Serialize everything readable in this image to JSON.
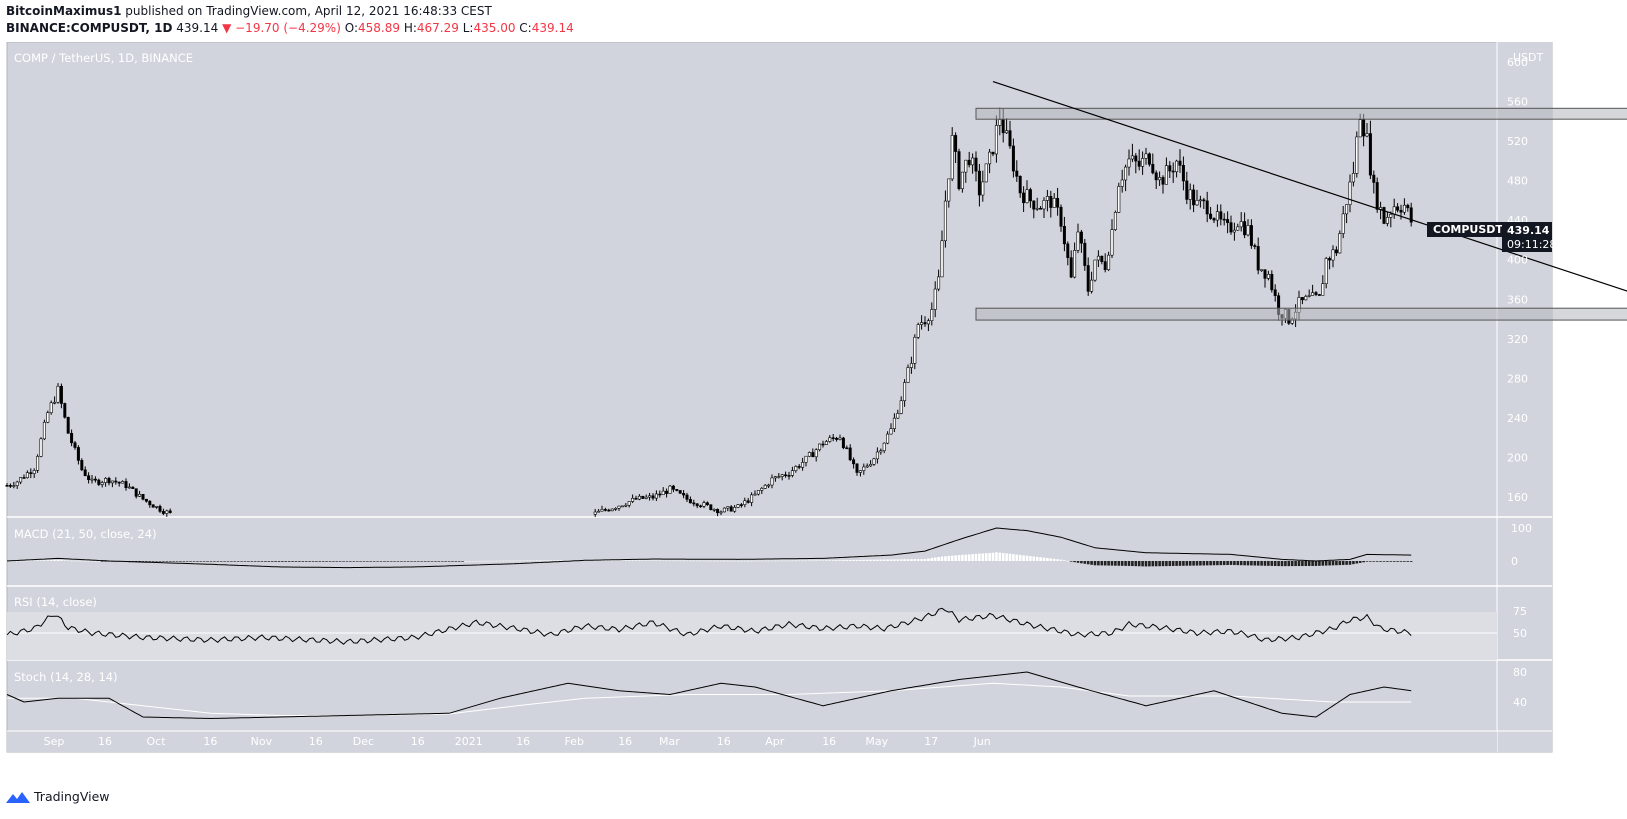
{
  "header": {
    "author": "BitcoinMaximus1",
    "published_text": "published on TradingView.com, April 12, 2021 16:48:33 CEST",
    "symbol": "BINANCE:COMPUSDT, 1D",
    "last": "439.14",
    "arrow": "▼",
    "change": "−19.70 (−4.29%)",
    "o_label": "O:",
    "o": "458.89",
    "h_label": "H:",
    "h": "467.29",
    "l_label": "L:",
    "l": "435.00",
    "c_label": "C:",
    "c": "439.14"
  },
  "chart_data": [
    {
      "type": "candlestick",
      "title": "COMP / TetherUS, 1D, BINANCE",
      "currency": "USDT",
      "ylim": [
        140,
        620
      ],
      "y_ticks": [
        160,
        200,
        240,
        280,
        320,
        360,
        400,
        440,
        480,
        520,
        560,
        600
      ],
      "x_ticks": [
        "Sep",
        "16",
        "Oct",
        "16",
        "Nov",
        "16",
        "Dec",
        "16",
        "2021",
        "16",
        "Feb",
        "16",
        "Mar",
        "16",
        "Apr",
        "16",
        "May",
        "17",
        "Jun"
      ],
      "price_label": {
        "symbol": "COMPUSDT",
        "price": "439.14",
        "countdown": "09:11:28"
      },
      "close_anchors": [
        [
          0,
          172
        ],
        [
          3,
          176
        ],
        [
          8,
          190
        ],
        [
          12,
          245
        ],
        [
          15,
          268
        ],
        [
          18,
          225
        ],
        [
          22,
          188
        ],
        [
          25,
          175
        ],
        [
          30,
          178
        ],
        [
          35,
          172
        ],
        [
          40,
          158
        ],
        [
          45,
          148
        ],
        [
          50,
          140
        ],
        [
          100,
          135
        ],
        [
          150,
          136
        ],
        [
          170,
          140
        ],
        [
          180,
          152
        ],
        [
          185,
          158
        ],
        [
          190,
          160
        ],
        [
          195,
          168
        ],
        [
          200,
          158
        ],
        [
          205,
          152
        ],
        [
          210,
          146
        ],
        [
          215,
          150
        ],
        [
          220,
          162
        ],
        [
          225,
          178
        ],
        [
          230,
          185
        ],
        [
          235,
          198
        ],
        [
          240,
          215
        ],
        [
          245,
          222
        ],
        [
          250,
          182
        ],
        [
          255,
          200
        ],
        [
          260,
          228
        ],
        [
          263,
          260
        ],
        [
          266,
          300
        ],
        [
          268,
          335
        ],
        [
          270,
          340
        ],
        [
          272,
          350
        ],
        [
          274,
          378
        ],
        [
          276,
          460
        ],
        [
          278,
          520
        ],
        [
          280,
          480
        ],
        [
          283,
          505
        ],
        [
          286,
          470
        ],
        [
          289,
          500
        ],
        [
          292,
          545
        ],
        [
          295,
          510
        ],
        [
          298,
          470
        ],
        [
          301,
          460
        ],
        [
          304,
          455
        ],
        [
          307,
          460
        ],
        [
          310,
          440
        ],
        [
          313,
          380
        ],
        [
          315,
          430
        ],
        [
          318,
          370
        ],
        [
          320,
          400
        ],
        [
          323,
          395
        ],
        [
          325,
          430
        ],
        [
          327,
          480
        ],
        [
          330,
          500
        ],
        [
          333,
          495
        ],
        [
          336,
          505
        ],
        [
          339,
          480
        ],
        [
          342,
          490
        ],
        [
          344,
          500
        ],
        [
          347,
          470
        ],
        [
          350,
          455
        ],
        [
          353,
          455
        ],
        [
          356,
          440
        ],
        [
          359,
          430
        ],
        [
          362,
          440
        ],
        [
          365,
          430
        ],
        [
          368,
          395
        ],
        [
          371,
          385
        ],
        [
          374,
          350
        ],
        [
          377,
          340
        ],
        [
          380,
          355
        ],
        [
          383,
          360
        ],
        [
          386,
          360
        ],
        [
          388,
          400
        ],
        [
          391,
          410
        ],
        [
          394,
          460
        ],
        [
          396,
          490
        ],
        [
          398,
          550
        ],
        [
          400,
          520
        ],
        [
          402,
          470
        ],
        [
          405,
          440
        ],
        [
          408,
          455
        ],
        [
          411,
          455
        ],
        [
          413,
          439
        ]
      ],
      "trendline": {
        "from": [
          290,
          580
        ],
        "to": [
          505,
          336
        ]
      },
      "resistance_zone": {
        "from": 285,
        "to": 515,
        "low": 542,
        "high": 553
      },
      "support_zone": {
        "from": 285,
        "to": 517,
        "low": 339,
        "high": 351
      }
    },
    {
      "type": "line",
      "title": "MACD (21, 50, close, 24)",
      "y_ticks": [
        100,
        0
      ],
      "macd_anchors": [
        [
          0,
          0
        ],
        [
          15,
          8
        ],
        [
          30,
          0
        ],
        [
          60,
          -10
        ],
        [
          80,
          -18
        ],
        [
          100,
          -20
        ],
        [
          120,
          -18
        ],
        [
          150,
          -8
        ],
        [
          170,
          2
        ],
        [
          190,
          6
        ],
        [
          215,
          5
        ],
        [
          240,
          8
        ],
        [
          260,
          18
        ],
        [
          270,
          30
        ],
        [
          280,
          65
        ],
        [
          291,
          100
        ],
        [
          300,
          92
        ],
        [
          310,
          72
        ],
        [
          320,
          40
        ],
        [
          335,
          25
        ],
        [
          360,
          20
        ],
        [
          375,
          5
        ],
        [
          385,
          0
        ],
        [
          395,
          5
        ],
        [
          400,
          20
        ],
        [
          413,
          18
        ]
      ],
      "signal_anchors": [
        [
          0,
          0
        ],
        [
          20,
          4
        ],
        [
          40,
          -3
        ],
        [
          60,
          -8
        ],
        [
          80,
          -14
        ],
        [
          100,
          -17
        ],
        [
          120,
          -16
        ],
        [
          150,
          -10
        ],
        [
          170,
          -2
        ],
        [
          190,
          3
        ],
        [
          215,
          4
        ],
        [
          240,
          5
        ],
        [
          260,
          10
        ],
        [
          275,
          25
        ],
        [
          290,
          55
        ],
        [
          300,
          65
        ],
        [
          315,
          65
        ],
        [
          330,
          55
        ],
        [
          360,
          40
        ],
        [
          385,
          25
        ],
        [
          413,
          22
        ]
      ]
    },
    {
      "type": "line",
      "title": "RSI (14, close)",
      "y_ticks": [
        75,
        50
      ],
      "bands": [
        30,
        70
      ],
      "rsi_anchors": [
        [
          0,
          48
        ],
        [
          8,
          55
        ],
        [
          14,
          72
        ],
        [
          18,
          56
        ],
        [
          25,
          50
        ],
        [
          40,
          45
        ],
        [
          60,
          42
        ],
        [
          75,
          45
        ],
        [
          100,
          40
        ],
        [
          120,
          45
        ],
        [
          138,
          62
        ],
        [
          150,
          55
        ],
        [
          160,
          48
        ],
        [
          170,
          58
        ],
        [
          180,
          54
        ],
        [
          190,
          62
        ],
        [
          200,
          48
        ],
        [
          210,
          58
        ],
        [
          220,
          52
        ],
        [
          230,
          60
        ],
        [
          240,
          55
        ],
        [
          250,
          58
        ],
        [
          258,
          55
        ],
        [
          265,
          62
        ],
        [
          270,
          68
        ],
        [
          276,
          78
        ],
        [
          280,
          65
        ],
        [
          290,
          70
        ],
        [
          300,
          60
        ],
        [
          310,
          52
        ],
        [
          315,
          48
        ],
        [
          325,
          50
        ],
        [
          330,
          60
        ],
        [
          340,
          56
        ],
        [
          350,
          50
        ],
        [
          360,
          52
        ],
        [
          365,
          48
        ],
        [
          370,
          42
        ],
        [
          380,
          45
        ],
        [
          390,
          55
        ],
        [
          395,
          65
        ],
        [
          400,
          68
        ],
        [
          404,
          55
        ],
        [
          413,
          50
        ]
      ]
    },
    {
      "type": "line",
      "title": "Stoch (14, 28, 14)",
      "y_ticks": [
        80,
        40
      ],
      "k_anchors": [
        [
          0,
          50
        ],
        [
          5,
          40
        ],
        [
          15,
          45
        ],
        [
          30,
          45
        ],
        [
          40,
          20
        ],
        [
          60,
          18
        ],
        [
          80,
          20
        ],
        [
          100,
          22
        ],
        [
          130,
          25
        ],
        [
          145,
          45
        ],
        [
          165,
          65
        ],
        [
          180,
          55
        ],
        [
          195,
          50
        ],
        [
          210,
          65
        ],
        [
          220,
          60
        ],
        [
          240,
          35
        ],
        [
          260,
          55
        ],
        [
          280,
          70
        ],
        [
          300,
          80
        ],
        [
          315,
          60
        ],
        [
          335,
          35
        ],
        [
          355,
          55
        ],
        [
          375,
          25
        ],
        [
          385,
          20
        ],
        [
          395,
          50
        ],
        [
          405,
          60
        ],
        [
          413,
          55
        ]
      ],
      "d_anchors": [
        [
          0,
          45
        ],
        [
          20,
          45
        ],
        [
          40,
          35
        ],
        [
          60,
          25
        ],
        [
          80,
          22
        ],
        [
          100,
          22
        ],
        [
          130,
          24
        ],
        [
          150,
          35
        ],
        [
          170,
          45
        ],
        [
          200,
          50
        ],
        [
          230,
          50
        ],
        [
          260,
          55
        ],
        [
          290,
          65
        ],
        [
          310,
          60
        ],
        [
          330,
          48
        ],
        [
          360,
          48
        ],
        [
          390,
          40
        ],
        [
          413,
          40
        ]
      ]
    }
  ],
  "footer": {
    "brand": "TradingView"
  },
  "colors": {
    "bg": "#d1d4dc",
    "up": "#ffffff",
    "down": "#000000",
    "line": "#000000",
    "header_red": "#f23645"
  }
}
